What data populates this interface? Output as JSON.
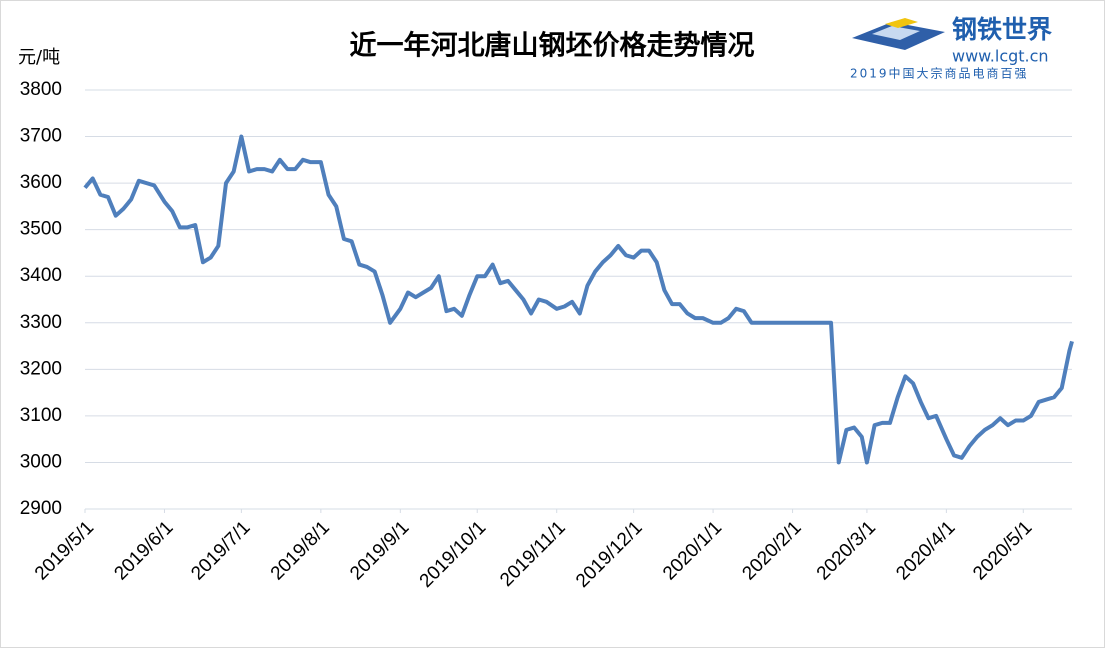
{
  "chart_data": {
    "type": "line",
    "title": "近一年河北唐山钢坯价格走势情况",
    "y_label": "元/吨",
    "x": [
      "2019/5/1",
      "2019/5/4",
      "2019/5/7",
      "2019/5/10",
      "2019/5/13",
      "2019/5/16",
      "2019/5/19",
      "2019/5/22",
      "2019/5/25",
      "2019/5/28",
      "2019/6/1",
      "2019/6/4",
      "2019/6/7",
      "2019/6/10",
      "2019/6/13",
      "2019/6/16",
      "2019/6/19",
      "2019/6/22",
      "2019/6/25",
      "2019/6/28",
      "2019/7/1",
      "2019/7/4",
      "2019/7/7",
      "2019/7/10",
      "2019/7/13",
      "2019/7/16",
      "2019/7/19",
      "2019/7/22",
      "2019/7/25",
      "2019/7/28",
      "2019/8/1",
      "2019/8/4",
      "2019/8/7",
      "2019/8/10",
      "2019/8/13",
      "2019/8/16",
      "2019/8/19",
      "2019/8/22",
      "2019/8/25",
      "2019/8/28",
      "2019/9/1",
      "2019/9/4",
      "2019/9/7",
      "2019/9/10",
      "2019/9/13",
      "2019/9/16",
      "2019/9/19",
      "2019/9/22",
      "2019/9/25",
      "2019/9/28",
      "2019/10/1",
      "2019/10/4",
      "2019/10/7",
      "2019/10/10",
      "2019/10/13",
      "2019/10/16",
      "2019/10/19",
      "2019/10/22",
      "2019/10/25",
      "2019/10/28",
      "2019/11/1",
      "2019/11/4",
      "2019/11/7",
      "2019/11/10",
      "2019/11/13",
      "2019/11/16",
      "2019/11/19",
      "2019/11/22",
      "2019/11/25",
      "2019/11/28",
      "2019/12/1",
      "2019/12/4",
      "2019/12/7",
      "2019/12/10",
      "2019/12/13",
      "2019/12/16",
      "2019/12/19",
      "2019/12/22",
      "2019/12/25",
      "2019/12/28",
      "2020/1/1",
      "2020/1/4",
      "2020/1/7",
      "2020/1/10",
      "2020/1/13",
      "2020/1/16",
      "2020/1/19",
      "2020/1/22",
      "2020/1/25",
      "2020/1/28",
      "2020/2/1",
      "2020/2/4",
      "2020/2/7",
      "2020/2/10",
      "2020/2/13",
      "2020/2/16",
      "2020/2/19",
      "2020/2/22",
      "2020/2/25",
      "2020/2/28",
      "2020/3/1",
      "2020/3/4",
      "2020/3/7",
      "2020/3/10",
      "2020/3/13",
      "2020/3/16",
      "2020/3/19",
      "2020/3/22",
      "2020/3/25",
      "2020/3/28",
      "2020/4/1",
      "2020/4/4",
      "2020/4/7",
      "2020/4/10",
      "2020/4/13",
      "2020/4/16",
      "2020/4/19",
      "2020/4/22",
      "2020/4/25",
      "2020/4/28",
      "2020/5/1",
      "2020/5/4",
      "2020/5/7",
      "2020/5/10",
      "2020/5/13",
      "2020/5/16",
      "2020/5/19",
      "2020/5/20"
    ],
    "series": [
      {
        "color": "#4f7fbc",
        "values": [
          3590,
          3610,
          3575,
          3570,
          3530,
          3545,
          3565,
          3605,
          3600,
          3595,
          3560,
          3540,
          3505,
          3505,
          3510,
          3430,
          3440,
          3465,
          3600,
          3625,
          3700,
          3625,
          3630,
          3630,
          3625,
          3650,
          3630,
          3630,
          3650,
          3645,
          3645,
          3575,
          3550,
          3480,
          3475,
          3425,
          3420,
          3410,
          3360,
          3300,
          3330,
          3365,
          3355,
          3365,
          3375,
          3400,
          3325,
          3330,
          3315,
          3360,
          3400,
          3400,
          3425,
          3385,
          3390,
          3370,
          3350,
          3320,
          3350,
          3345,
          3330,
          3335,
          3345,
          3320,
          3380,
          3410,
          3430,
          3445,
          3465,
          3445,
          3440,
          3455,
          3455,
          3430,
          3370,
          3340,
          3340,
          3320,
          3310,
          3310,
          3300,
          3300,
          3310,
          3330,
          3325,
          3300,
          3300,
          3300,
          3300,
          3300,
          3300,
          3300,
          3300,
          3300,
          3300,
          3300,
          3000,
          3070,
          3075,
          3055,
          3000,
          3080,
          3085,
          3085,
          3140,
          3185,
          3170,
          3130,
          3095,
          3100,
          3050,
          3015,
          3010,
          3035,
          3055,
          3070,
          3080,
          3095,
          3080,
          3090,
          3090,
          3100,
          3130,
          3135,
          3140,
          3160,
          3240,
          3260
        ]
      }
    ],
    "xlim": [
      "2019/5/1",
      "2020/5/20"
    ],
    "xticks": [
      "2019/5/1",
      "2019/6/1",
      "2019/7/1",
      "2019/8/1",
      "2019/9/1",
      "2019/10/1",
      "2019/11/1",
      "2019/12/1",
      "2020/1/1",
      "2020/2/1",
      "2020/3/1",
      "2020/4/1",
      "2020/5/1"
    ],
    "ylim": [
      2900,
      3800
    ],
    "yticks": [
      2900,
      3000,
      3100,
      3200,
      3300,
      3400,
      3500,
      3600,
      3700,
      3800
    ],
    "grid": true
  },
  "logo": {
    "name": "钢铁世界",
    "url": "www.lcgt.cn",
    "slogan": "2019中国大宗商品电商百强"
  }
}
